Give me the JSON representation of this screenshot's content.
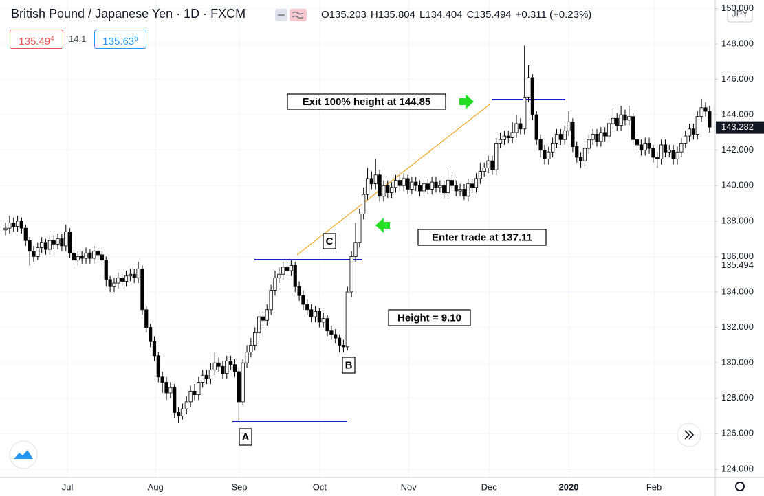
{
  "header": {
    "title": "British Pound / Japanese Yen · 1D · FXCM",
    "ohlc": [
      {
        "key": "O",
        "value": "135.203"
      },
      {
        "key": "H",
        "value": "135.804"
      },
      {
        "key": "L",
        "value": "134.404"
      },
      {
        "key": "C",
        "value": "135.494"
      }
    ],
    "change": "+0.311 (+0.23%)"
  },
  "trade": {
    "sell": "135.49",
    "sell_pip": "4",
    "spread": "14.1",
    "buy": "135.63",
    "buy_pip": "5"
  },
  "currency": "JPY",
  "chart_data": {
    "type": "candlestick",
    "open": [
      137.5,
      137.6,
      137.9,
      137.7,
      138.0,
      137.6,
      136.9,
      136.3,
      136.0,
      136.5,
      136.8,
      136.4,
      136.9,
      136.7,
      137.0,
      136.6,
      137.4,
      136.2,
      135.8,
      136.0,
      135.9,
      136.2,
      135.9,
      136.3,
      136.1,
      135.8,
      134.7,
      134.3,
      134.5,
      134.8,
      134.6,
      134.9,
      135.0,
      134.8,
      135.3,
      133.0,
      132.0,
      131.2,
      130.4,
      129.2,
      128.9,
      128.3,
      128.6,
      127.2,
      127.0,
      127.4,
      127.8,
      128.4,
      128.2,
      128.9,
      129.3,
      129.1,
      129.6,
      130.0,
      129.8,
      129.4,
      130.1,
      129.9,
      129.5,
      127.8,
      130.0,
      130.6,
      131.0,
      131.7,
      132.6,
      132.4,
      133.0,
      134.1,
      134.8,
      135.0,
      135.4,
      135.2,
      135.5,
      134.3,
      133.8,
      133.3,
      133.0,
      132.6,
      132.9,
      132.3,
      132.5,
      131.8,
      131.6,
      131.4,
      131.0,
      130.9,
      134.0,
      136.0,
      136.8,
      138.4,
      139.5,
      140.4,
      140.1,
      140.6,
      139.4,
      140.0,
      139.6,
      139.9,
      140.3,
      140.0,
      140.4,
      139.8,
      140.2,
      140.0,
      139.7,
      140.1,
      139.8,
      140.2,
      139.9,
      140.0,
      139.6,
      140.3,
      140.0,
      139.7,
      139.8,
      139.4,
      140.1,
      139.9,
      140.4,
      140.8,
      141.0,
      141.4,
      140.9,
      142.4,
      142.6,
      142.8,
      142.7,
      143.0,
      143.5,
      143.2,
      145.0,
      146.1,
      144.0,
      142.6,
      142.0,
      141.5,
      141.9,
      142.4,
      142.9,
      142.6,
      143.1,
      143.6,
      142.2,
      141.6,
      141.4,
      142.1,
      142.6,
      142.9,
      142.5,
      143.0,
      142.8,
      143.5,
      143.8,
      143.4,
      144.0,
      143.7,
      143.9,
      142.6,
      142.3,
      142.0,
      142.4,
      142.1,
      141.6,
      141.5,
      142.3,
      141.9,
      142.0,
      141.5,
      141.9,
      142.4,
      142.8,
      143.2,
      142.9,
      143.9,
      144.4,
      144.2
    ],
    "high": [
      137.9,
      138.3,
      138.2,
      138.3,
      138.2,
      137.8,
      137.1,
      136.6,
      136.8,
      137.1,
      137.0,
      137.2,
      137.2,
      137.3,
      137.3,
      137.8,
      137.6,
      136.4,
      136.3,
      136.3,
      136.5,
      136.4,
      136.6,
      136.5,
      136.3,
      136.0,
      134.9,
      134.8,
      135.1,
      135.0,
      135.2,
      135.3,
      135.3,
      135.7,
      135.5,
      133.2,
      132.2,
      131.5,
      130.6,
      129.5,
      129.2,
      128.9,
      128.8,
      127.5,
      127.7,
      128.1,
      128.7,
      128.8,
      129.2,
      129.6,
      129.6,
      130.0,
      130.6,
      130.3,
      130.1,
      130.4,
      130.4,
      130.2,
      129.7,
      130.2,
      131.0,
      131.4,
      132.0,
      132.9,
      132.9,
      133.3,
      134.4,
      135.2,
      135.4,
      135.7,
      135.7,
      135.8,
      135.7,
      134.6,
      134.1,
      133.6,
      133.3,
      133.2,
      133.1,
      132.8,
      132.7,
      132.1,
      131.9,
      131.6,
      131.3,
      134.3,
      136.3,
      137.9,
      138.7,
      139.9,
      141.0,
      140.8,
      141.5,
      140.9,
      140.3,
      140.3,
      140.2,
      140.6,
      140.6,
      140.7,
      140.6,
      140.5,
      140.5,
      140.3,
      140.4,
      140.4,
      140.5,
      140.5,
      140.3,
      140.3,
      140.9,
      140.6,
      140.3,
      140.1,
      140.1,
      140.4,
      140.4,
      140.7,
      141.3,
      141.3,
      141.7,
      141.7,
      142.7,
      143.0,
      143.1,
      143.1,
      143.6,
      144.0,
      143.8,
      147.9,
      146.8,
      146.3,
      144.2,
      142.9,
      142.3,
      142.2,
      142.7,
      143.2,
      143.2,
      143.4,
      144.2,
      143.8,
      142.5,
      141.9,
      142.4,
      142.9,
      143.2,
      143.2,
      143.3,
      143.3,
      143.8,
      144.4,
      144.1,
      144.5,
      144.3,
      144.5,
      144.1,
      142.9,
      142.6,
      142.7,
      142.7,
      142.3,
      141.9,
      142.6,
      142.6,
      142.3,
      142.3,
      142.2,
      142.7,
      143.1,
      143.5,
      143.5,
      144.2,
      144.9,
      144.7,
      144.5
    ],
    "low": [
      137.2,
      137.3,
      137.4,
      137.4,
      137.3,
      136.6,
      135.5,
      135.7,
      135.8,
      136.2,
      136.1,
      136.1,
      136.4,
      136.4,
      136.3,
      136.3,
      135.9,
      135.5,
      135.5,
      135.6,
      135.6,
      135.6,
      135.6,
      135.8,
      135.5,
      134.3,
      134.0,
      134.0,
      134.2,
      134.3,
      134.3,
      134.6,
      134.5,
      134.5,
      132.7,
      131.7,
      130.9,
      130.1,
      128.9,
      128.3,
      127.9,
      128.0,
      126.9,
      126.6,
      126.8,
      127.1,
      127.5,
      127.9,
      127.9,
      128.6,
      128.8,
      128.8,
      129.3,
      129.5,
      129.1,
      129.1,
      129.6,
      129.2,
      126.7,
      127.6,
      129.7,
      130.3,
      130.7,
      131.4,
      132.1,
      132.1,
      132.7,
      133.8,
      134.5,
      134.7,
      134.9,
      134.9,
      134.0,
      133.5,
      133.0,
      132.7,
      132.3,
      132.3,
      132.0,
      132.0,
      131.5,
      131.3,
      131.1,
      130.6,
      130.6,
      130.7,
      133.7,
      135.7,
      136.5,
      138.1,
      139.2,
      139.8,
      139.8,
      139.1,
      139.1,
      139.3,
      139.3,
      139.6,
      139.7,
      139.7,
      139.5,
      139.5,
      139.7,
      139.4,
      139.4,
      139.5,
      139.5,
      139.6,
      139.6,
      139.3,
      139.3,
      139.7,
      139.4,
      139.4,
      139.2,
      139.1,
      139.6,
      139.6,
      140.1,
      140.5,
      140.7,
      140.6,
      140.6,
      142.1,
      142.3,
      142.4,
      142.4,
      142.7,
      142.9,
      142.9,
      144.7,
      143.7,
      142.3,
      141.6,
      141.2,
      141.2,
      141.6,
      142.1,
      142.3,
      142.3,
      142.8,
      141.9,
      141.3,
      141.0,
      141.1,
      141.8,
      142.3,
      142.2,
      142.2,
      142.5,
      142.5,
      143.2,
      143.1,
      143.1,
      143.4,
      143.4,
      142.3,
      142.0,
      141.7,
      141.7,
      141.8,
      141.3,
      141.0,
      141.2,
      141.6,
      141.6,
      141.2,
      141.2,
      141.6,
      142.1,
      142.5,
      142.6,
      142.6,
      143.6,
      143.9,
      143.0
    ],
    "close": [
      137.6,
      137.9,
      137.7,
      138.0,
      137.6,
      136.9,
      136.3,
      136.0,
      136.5,
      136.8,
      136.4,
      136.9,
      136.7,
      137.0,
      136.6,
      137.4,
      136.2,
      135.8,
      136.0,
      135.9,
      136.2,
      135.9,
      136.3,
      136.1,
      135.8,
      134.7,
      134.3,
      134.5,
      134.8,
      134.6,
      134.9,
      135.0,
      134.8,
      135.3,
      133.0,
      132.0,
      131.2,
      130.4,
      129.2,
      128.9,
      128.3,
      128.6,
      127.2,
      127.0,
      127.4,
      127.8,
      128.4,
      128.2,
      128.9,
      129.3,
      129.1,
      129.6,
      130.0,
      129.8,
      129.4,
      130.1,
      129.9,
      129.5,
      127.8,
      130.0,
      130.6,
      131.0,
      131.7,
      132.6,
      132.4,
      133.0,
      134.1,
      134.8,
      135.0,
      135.4,
      135.2,
      135.5,
      134.3,
      133.8,
      133.3,
      133.0,
      132.6,
      132.9,
      132.3,
      132.5,
      131.8,
      131.6,
      131.4,
      131.0,
      130.9,
      134.0,
      136.0,
      136.8,
      138.4,
      139.5,
      140.4,
      140.1,
      140.6,
      139.4,
      140.0,
      139.6,
      139.9,
      140.3,
      140.0,
      140.4,
      139.8,
      140.2,
      140.0,
      139.7,
      140.1,
      139.8,
      140.2,
      139.9,
      140.0,
      139.6,
      140.3,
      140.0,
      139.7,
      139.8,
      139.4,
      140.1,
      139.9,
      140.4,
      140.8,
      141.0,
      141.4,
      140.9,
      142.4,
      142.6,
      142.8,
      142.7,
      143.0,
      143.5,
      143.2,
      145.0,
      146.1,
      144.0,
      142.6,
      142.0,
      141.5,
      141.9,
      142.4,
      142.9,
      142.6,
      143.1,
      143.6,
      142.2,
      141.6,
      141.4,
      142.1,
      142.6,
      142.9,
      142.5,
      143.0,
      142.8,
      143.5,
      143.8,
      143.4,
      144.0,
      143.7,
      143.9,
      142.6,
      142.3,
      142.0,
      142.4,
      142.1,
      141.6,
      141.5,
      142.3,
      141.9,
      142.0,
      141.5,
      141.9,
      142.4,
      142.8,
      143.2,
      142.9,
      143.9,
      144.4,
      144.2,
      143.3
    ],
    "up_color": "#ffffff",
    "down_color": "#000000",
    "wick_color": "#000000",
    "xlim": [
      -1.37,
      176.4
    ],
    "xticks": [
      {
        "value": 15.4,
        "label": "Jul"
      },
      {
        "value": 37.3,
        "label": "Aug"
      },
      {
        "value": 58.1,
        "label": "Sep"
      },
      {
        "value": 78.1,
        "label": "Oct"
      },
      {
        "value": 100.2,
        "label": "Nov"
      },
      {
        "value": 120.2,
        "label": "Dec"
      },
      {
        "value": 140.0,
        "label": "2020"
      },
      {
        "value": 161.2,
        "label": "Feb"
      }
    ],
    "ylim": [
      123.53,
      150.48
    ],
    "yticks": [
      {
        "value": 124,
        "label": "124.000"
      },
      {
        "value": 126,
        "label": "126.000"
      },
      {
        "value": 128,
        "label": "128.000"
      },
      {
        "value": 130,
        "label": "130.000"
      },
      {
        "value": 132,
        "label": "132.000"
      },
      {
        "value": 134,
        "label": "134.000"
      },
      {
        "value": 136,
        "label": "136.000"
      },
      {
        "value": 138,
        "label": "138.000"
      },
      {
        "value": 140,
        "label": "140.000"
      },
      {
        "value": 142,
        "label": "142.000"
      },
      {
        "value": 144,
        "label": "144.000"
      },
      {
        "value": 146,
        "label": "146.000"
      },
      {
        "value": 148,
        "label": "148.000"
      },
      {
        "value": 150,
        "label": "150.000"
      }
    ],
    "grid": true,
    "price_labels": [
      143.282,
      135.494
    ],
    "annotations": [
      "Exit 100% height at  144.85",
      "Enter trade at 137.11",
      "Height = 9.10",
      "A",
      "B",
      "C"
    ]
  }
}
